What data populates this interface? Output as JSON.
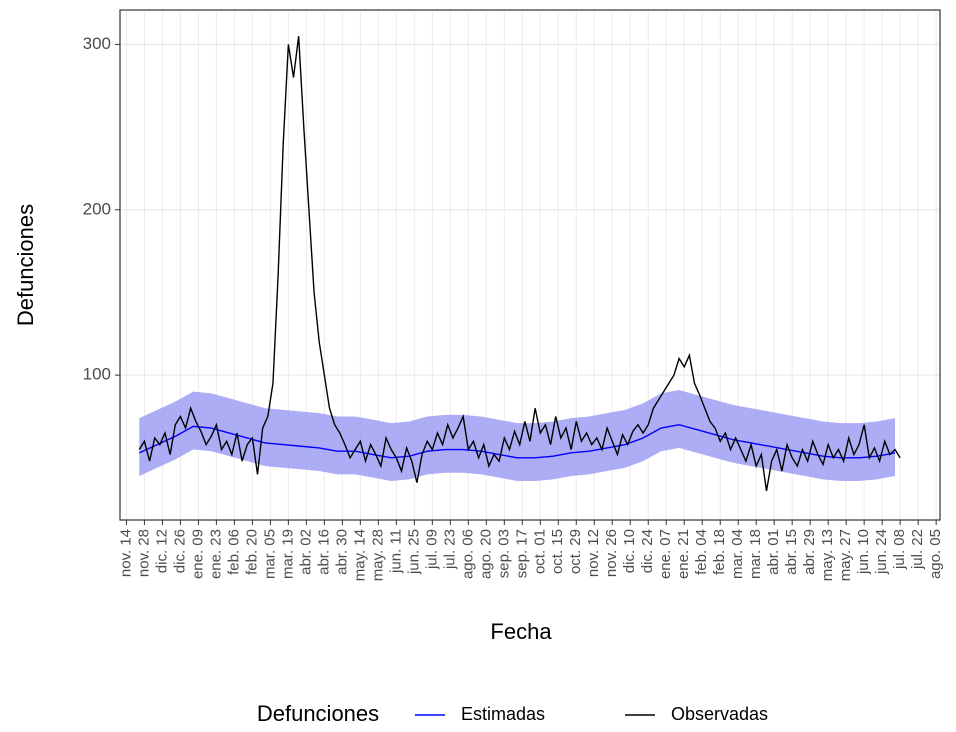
{
  "chart_data": {
    "type": "line",
    "x_label": "Fecha",
    "y_label": "Defunciones",
    "legend_title": "Defunciones",
    "legend": "bottom",
    "grid": true,
    "ylim": [
      12.4,
      320.8
    ],
    "yticks": [
      100,
      200,
      300
    ],
    "xlim": [
      -5,
      633
    ],
    "xticks": [
      {
        "value": 0,
        "label": "nov. 14"
      },
      {
        "value": 14,
        "label": "nov. 28"
      },
      {
        "value": 28,
        "label": "dic. 12"
      },
      {
        "value": 42,
        "label": "dic. 26"
      },
      {
        "value": 56,
        "label": "ene. 09"
      },
      {
        "value": 70,
        "label": "ene. 23"
      },
      {
        "value": 84,
        "label": "feb. 06"
      },
      {
        "value": 98,
        "label": "feb. 20"
      },
      {
        "value": 112,
        "label": "mar. 05"
      },
      {
        "value": 126,
        "label": "mar. 19"
      },
      {
        "value": 140,
        "label": "abr. 02"
      },
      {
        "value": 154,
        "label": "abr. 16"
      },
      {
        "value": 168,
        "label": "abr. 30"
      },
      {
        "value": 182,
        "label": "may. 14"
      },
      {
        "value": 196,
        "label": "may. 28"
      },
      {
        "value": 210,
        "label": "jun. 11"
      },
      {
        "value": 224,
        "label": "jun. 25"
      },
      {
        "value": 238,
        "label": "jul. 09"
      },
      {
        "value": 252,
        "label": "jul. 23"
      },
      {
        "value": 266,
        "label": "ago. 06"
      },
      {
        "value": 280,
        "label": "ago. 20"
      },
      {
        "value": 294,
        "label": "sep. 03"
      },
      {
        "value": 308,
        "label": "sep. 17"
      },
      {
        "value": 322,
        "label": "oct. 01"
      },
      {
        "value": 336,
        "label": "oct. 15"
      },
      {
        "value": 350,
        "label": "oct. 29"
      },
      {
        "value": 364,
        "label": "nov. 12"
      },
      {
        "value": 378,
        "label": "nov. 26"
      },
      {
        "value": 392,
        "label": "dic. 10"
      },
      {
        "value": 406,
        "label": "dic. 24"
      },
      {
        "value": 420,
        "label": "ene. 07"
      },
      {
        "value": 434,
        "label": "ene. 21"
      },
      {
        "value": 448,
        "label": "feb. 04"
      },
      {
        "value": 462,
        "label": "feb. 18"
      },
      {
        "value": 476,
        "label": "mar. 04"
      },
      {
        "value": 490,
        "label": "mar. 18"
      },
      {
        "value": 504,
        "label": "abr. 01"
      },
      {
        "value": 518,
        "label": "abr. 15"
      },
      {
        "value": 532,
        "label": "abr. 29"
      },
      {
        "value": 546,
        "label": "may. 13"
      },
      {
        "value": 560,
        "label": "may. 27"
      },
      {
        "value": 574,
        "label": "jun. 10"
      },
      {
        "value": 588,
        "label": "jun. 24"
      },
      {
        "value": 602,
        "label": "jul. 08"
      },
      {
        "value": 616,
        "label": "jul. 22"
      },
      {
        "value": 630,
        "label": "ago. 05"
      }
    ],
    "series": [
      {
        "name": "Estimadas",
        "color": "#0000ff",
        "band_color": "#9f9ff5",
        "x": [
          10,
          24,
          38,
          52,
          66,
          80,
          94,
          108,
          122,
          136,
          150,
          164,
          178,
          192,
          206,
          220,
          234,
          248,
          262,
          276,
          290,
          304,
          318,
          332,
          346,
          360,
          374,
          388,
          402,
          416,
          430,
          444,
          458,
          472,
          486,
          500,
          514,
          528,
          542,
          556,
          570,
          584,
          598
        ],
        "values": [
          53,
          58,
          63,
          69,
          68,
          65,
          62,
          59,
          58,
          57,
          56,
          54,
          54,
          52,
          50,
          51,
          54,
          55,
          55,
          54,
          52,
          50,
          50,
          51,
          53,
          54,
          56,
          58,
          62,
          68,
          70,
          67,
          64,
          61,
          59,
          57,
          55,
          53,
          51,
          50,
          50,
          51,
          53
        ],
        "lower": [
          39,
          44,
          49,
          55,
          54,
          51,
          48,
          45,
          44,
          43,
          42,
          40,
          40,
          38,
          36,
          37,
          40,
          41,
          41,
          40,
          38,
          36,
          36,
          37,
          39,
          40,
          42,
          44,
          48,
          54,
          56,
          53,
          50,
          47,
          45,
          43,
          41,
          39,
          37,
          36,
          36,
          37,
          39
        ],
        "upper": [
          74,
          79,
          84,
          90,
          89,
          86,
          83,
          80,
          79,
          78,
          77,
          75,
          75,
          73,
          71,
          72,
          75,
          76,
          76,
          75,
          73,
          71,
          71,
          72,
          74,
          75,
          77,
          79,
          83,
          89,
          91,
          88,
          85,
          82,
          80,
          78,
          76,
          74,
          72,
          71,
          71,
          72,
          74
        ]
      },
      {
        "name": "Observadas",
        "color": "#000000",
        "x": [
          10,
          14,
          18,
          22,
          26,
          30,
          34,
          38,
          42,
          46,
          50,
          54,
          58,
          62,
          66,
          70,
          74,
          78,
          82,
          86,
          90,
          94,
          98,
          102,
          106,
          110,
          114,
          118,
          122,
          126,
          130,
          134,
          138,
          142,
          146,
          150,
          154,
          158,
          162,
          166,
          170,
          174,
          178,
          182,
          186,
          190,
          194,
          198,
          202,
          206,
          210,
          214,
          218,
          222,
          226,
          230,
          234,
          238,
          242,
          246,
          250,
          254,
          258,
          262,
          266,
          270,
          274,
          278,
          282,
          286,
          290,
          294,
          298,
          302,
          306,
          310,
          314,
          318,
          322,
          326,
          330,
          334,
          338,
          342,
          346,
          350,
          354,
          358,
          362,
          366,
          370,
          374,
          378,
          382,
          386,
          390,
          394,
          398,
          402,
          406,
          410,
          414,
          418,
          422,
          426,
          430,
          434,
          438,
          442,
          446,
          450,
          454,
          458,
          462,
          466,
          470,
          474,
          478,
          482,
          486,
          490,
          494,
          498,
          502,
          506,
          510,
          514,
          518,
          522,
          526,
          530,
          534,
          538,
          542,
          546,
          550,
          554,
          558,
          562,
          566,
          570,
          574,
          578,
          582,
          586,
          590,
          594,
          598,
          602
        ],
        "values": [
          55,
          60,
          48,
          62,
          58,
          65,
          52,
          70,
          75,
          68,
          80,
          72,
          66,
          58,
          63,
          70,
          55,
          60,
          52,
          65,
          48,
          58,
          62,
          40,
          68,
          75,
          95,
          160,
          240,
          300,
          280,
          305,
          250,
          200,
          150,
          120,
          100,
          80,
          70,
          65,
          58,
          50,
          55,
          60,
          48,
          58,
          52,
          45,
          62,
          55,
          50,
          42,
          56,
          48,
          35,
          52,
          60,
          55,
          65,
          58,
          70,
          62,
          68,
          75,
          55,
          60,
          50,
          58,
          45,
          52,
          48,
          62,
          55,
          66,
          58,
          72,
          60,
          80,
          65,
          70,
          58,
          75,
          62,
          68,
          55,
          72,
          60,
          65,
          58,
          62,
          55,
          68,
          60,
          52,
          64,
          58,
          66,
          70,
          65,
          70,
          80,
          85,
          90,
          95,
          100,
          110,
          105,
          112,
          95,
          88,
          80,
          72,
          68,
          60,
          65,
          55,
          62,
          55,
          48,
          58,
          45,
          52,
          30,
          48,
          55,
          42,
          58,
          50,
          45,
          55,
          48,
          60,
          52,
          46,
          58,
          50,
          55,
          48,
          62,
          52,
          58,
          70,
          50,
          56,
          48,
          60,
          52,
          55,
          50
        ]
      }
    ]
  }
}
